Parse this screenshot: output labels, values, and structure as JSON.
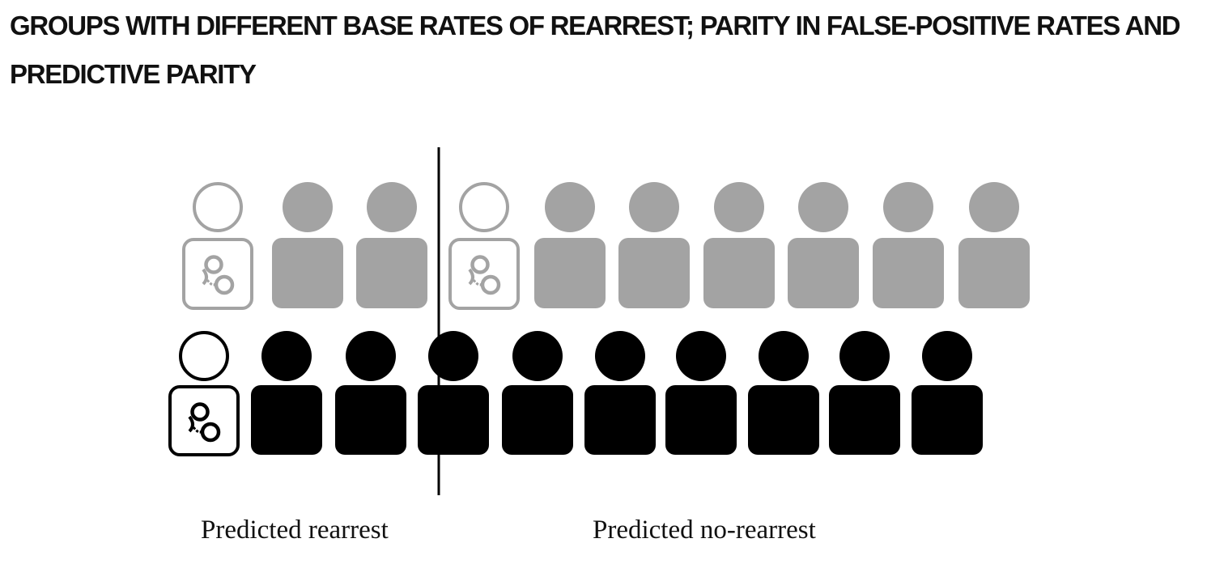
{
  "title": "GROUPS WITH DIFFERENT BASE RATES OF REARREST; PARITY IN FALSE-POSITIVE RATES AND PREDICTIVE PARITY",
  "labels": {
    "predicted_rearrest": "Predicted rearrest",
    "predicted_no_rearrest": "Predicted no-rearrest"
  },
  "colors": {
    "gray_group": "#a3a3a3",
    "black_group": "#000000",
    "background": "#ffffff"
  },
  "groups": [
    {
      "color": "gray",
      "people": [
        {
          "rearrested": true
        },
        {
          "rearrested": false
        },
        {
          "rearrested": false
        },
        {
          "rearrested": true
        },
        {
          "rearrested": false
        },
        {
          "rearrested": false
        },
        {
          "rearrested": false
        },
        {
          "rearrested": false
        },
        {
          "rearrested": false
        },
        {
          "rearrested": false
        }
      ]
    },
    {
      "color": "black",
      "people": [
        {
          "rearrested": true
        },
        {
          "rearrested": false
        },
        {
          "rearrested": false
        },
        {
          "rearrested": false
        },
        {
          "rearrested": false
        },
        {
          "rearrested": false
        },
        {
          "rearrested": false
        },
        {
          "rearrested": false
        },
        {
          "rearrested": false
        },
        {
          "rearrested": false
        }
      ]
    }
  ],
  "icons": {
    "rearrest_marker": "handcuffs-icon",
    "person": "person-icon"
  }
}
